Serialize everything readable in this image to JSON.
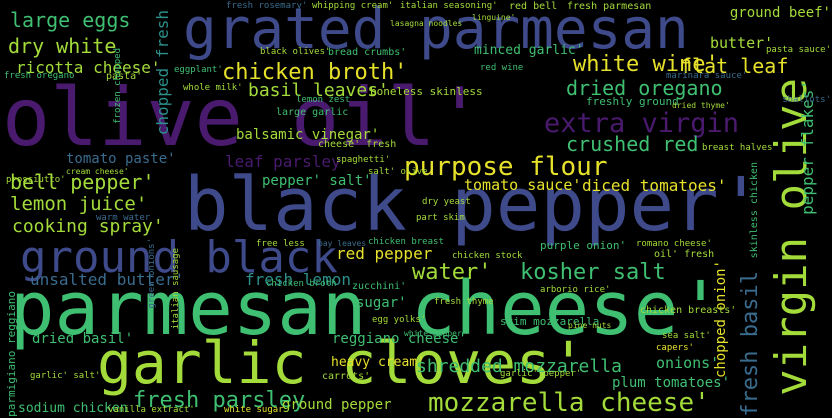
{
  "palette": {
    "purple": "#4a1a6e",
    "indigo": "#3e4a8a",
    "blue": "#3a6c8e",
    "teal": "#2c8f8a",
    "green": "#3fbf72",
    "lime": "#a3db3a",
    "yellow": "#e6e12a",
    "gray": "#6b6b6b",
    "background": "#000000"
  },
  "words": [
    "olive oil'",
    "black pepper'",
    "parmesan cheese'",
    "garlic cloves'",
    "grated parmesan",
    "virgin olive",
    "ground black",
    "mozzarella cheese'",
    "purpose flour",
    "chicken broth'",
    "white wine'",
    "extra virgin",
    "dried oregano",
    "crushed red",
    "fresh parsley",
    "kosher salt",
    "cooking spray'",
    "bell pepper'",
    "lemon juice'",
    "dry white",
    "ricotta cheese'",
    "large eggs",
    "flat leaf",
    "basil leaves'",
    "leaf parsley",
    "fresh basil",
    "water'",
    "red pepper",
    "unsalted butter'",
    "fresh lemon",
    "shredded mozzarella",
    "chopped fresh",
    "diced tomatoes'",
    "tomato sauce'",
    "tomato paste'",
    "balsamic vinegar'",
    "pepper flakes'",
    "pepper' salt'",
    "butter'",
    "ground beef'",
    "minced garlic'",
    "dried basil'",
    "chopped onion'",
    "reggiano cheese'",
    "heavy cream'",
    "onions'",
    "sugar'",
    "plum tomatoes'",
    "ground pepper",
    "sodium chicken",
    "fresh oregano",
    "fresh rosemary'",
    "whipping cream'",
    "italian seasoning'",
    "red bell",
    "fresh parmesan",
    "bread crumbs'",
    "black olives'",
    "eggplant'",
    "pasta'",
    "whole milk'",
    "boneless skinless",
    "lemon zest",
    "large garlic",
    "freshly ground",
    "dried thyme'",
    "chicken breast",
    "purple onion'",
    "romano cheese'",
    "zucchini'",
    "arborio rice'",
    "chicken breasts'",
    "egg yolks'",
    "cheese' fresh",
    "sea salt'",
    "capers'",
    "carrots'",
    "white sugar",
    "vanilla extract'",
    "pasta sauce'",
    "linguine'",
    "lasagna noodles",
    "garlic' salt'",
    "prosciutto'",
    "warm water",
    "part skim",
    "dry yeast",
    "free less",
    "bay leaves",
    "oil' fresh",
    "green onions'",
    "red wine",
    "white pepper",
    "skim mozzarella",
    "pine nuts",
    "chicken stock",
    "spaghetti'",
    "salt' olive",
    "breast halves",
    "parmigiano reggiano",
    "skinless chicken",
    "frozen chopped",
    "marinara sauce'",
    "shallots'",
    "fresh thyme",
    "garlic' pepper'",
    "italian sausage",
    "cream cheese'",
    "chicken broth"
  ]
}
